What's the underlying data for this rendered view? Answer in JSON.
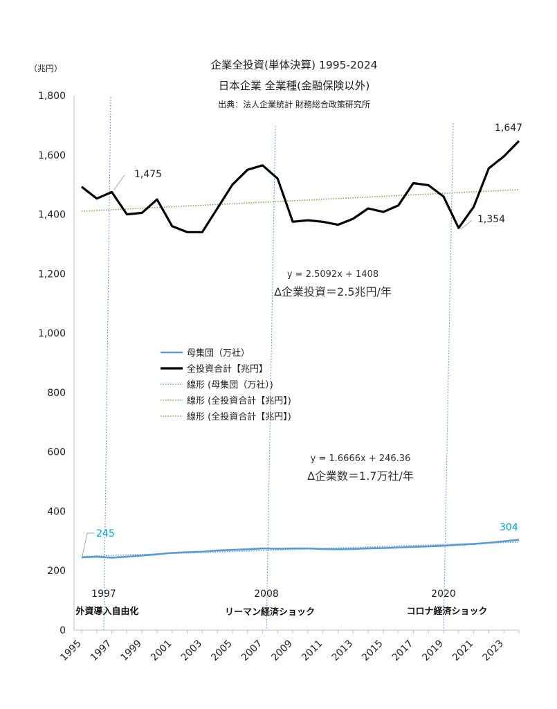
{
  "chart_data": {
    "type": "line",
    "title": "企業全投資(単体決算) 1995-2024",
    "subtitle": "日本企業 全業種(金融保険以外)",
    "source": "出典：法人企業統計 財務総合政策研究所",
    "ylabel": "（兆円）",
    "ylim": [
      0,
      1800
    ],
    "yticks": [
      "0",
      "200",
      "400",
      "600",
      "800",
      "1,000",
      "1,200",
      "1,400",
      "1,600",
      "1,800"
    ],
    "x": [
      1995,
      1996,
      1997,
      1998,
      1999,
      2000,
      2001,
      2002,
      2003,
      2004,
      2005,
      2006,
      2007,
      2008,
      2009,
      2010,
      2011,
      2012,
      2013,
      2014,
      2015,
      2016,
      2017,
      2018,
      2019,
      2020,
      2021,
      2022,
      2023,
      2024
    ],
    "xticks": [
      "1995",
      "1997",
      "1999",
      "2001",
      "2003",
      "2005",
      "2007",
      "2009",
      "2011",
      "2013",
      "2015",
      "2017",
      "2019",
      "2021",
      "2023"
    ],
    "series": [
      {
        "name": "母集団（万社）",
        "color": "#5b9bd5",
        "values": [
          245,
          247,
          244,
          247,
          251,
          255,
          260,
          262,
          264,
          268,
          270,
          272,
          275,
          274,
          275,
          275,
          273,
          272,
          273,
          275,
          276,
          278,
          280,
          282,
          284,
          287,
          290,
          294,
          299,
          304
        ]
      },
      {
        "name": "全投資合計【兆円】",
        "color": "#000000",
        "values": [
          1493,
          1453,
          1475,
          1400,
          1405,
          1450,
          1360,
          1340,
          1340,
          1420,
          1500,
          1550,
          1565,
          1520,
          1375,
          1380,
          1375,
          1365,
          1385,
          1420,
          1408,
          1430,
          1505,
          1498,
          1460,
          1354,
          1425,
          1555,
          1595,
          1647
        ]
      }
    ],
    "trendlines": [
      {
        "name": "線形 (母集団（万社）)",
        "color": "#5b9bd5",
        "slope": 1.6666,
        "intercept": 246.36
      },
      {
        "name": "線形 (全投資合計【兆円】)",
        "color": "#70ad47",
        "slope": 2.5092,
        "intercept": 1408
      },
      {
        "name": "線形 (全投資合計【兆円】)",
        "color": "#70ad47",
        "slope": 2.5092,
        "intercept": 1408
      }
    ],
    "annotations": {
      "eq_invest": "y = 2.5092x + 1408",
      "delta_invest": "Δ企業投資＝2.5兆円/年",
      "eq_firms": "y = 1.6666x + 246.36",
      "delta_firms": "Δ企業数＝1.7万社/年",
      "label_1475": "1,475",
      "label_1647": "1,647",
      "label_1354": "1,354",
      "label_245": "245",
      "label_304": "304"
    },
    "events": [
      {
        "year": "1997",
        "label": "外資導入自由化"
      },
      {
        "year": "2008",
        "label": "リーマン経済ショック"
      },
      {
        "year": "2020",
        "label": "コロナ経済ショック"
      }
    ],
    "grid": false,
    "legend_position": "center-left"
  }
}
